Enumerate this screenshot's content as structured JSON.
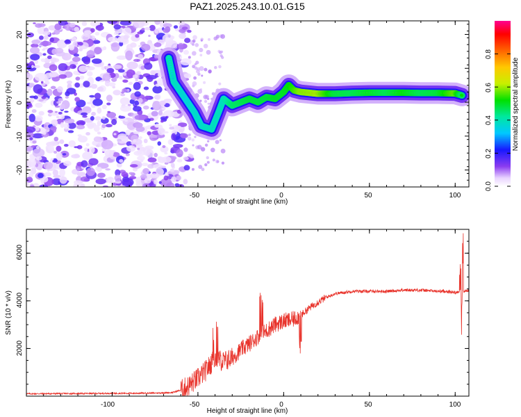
{
  "chart_data": [
    {
      "type": "heatmap",
      "title": "PAZ1.2025.243.10.01.G15",
      "xlabel": "Height of straight line (km)",
      "ylabel": "Frequency (Hz)",
      "xlim": [
        -150,
        108
      ],
      "ylim": [
        -25,
        24
      ],
      "xticks": [
        -100,
        -50,
        0,
        50,
        100
      ],
      "xtick_labels": [
        "-100",
        "-50",
        "0",
        "50",
        "100"
      ],
      "yticks": [
        -20,
        -10,
        0,
        10,
        20
      ],
      "ytick_labels": [
        "-20",
        "-10",
        "0",
        "10",
        "20"
      ],
      "colorbar": {
        "label": "Normalized spectral amplitude",
        "range": [
          0,
          1
        ],
        "ticks": [
          0.0,
          0.2,
          0.4,
          0.6,
          0.8
        ],
        "tick_labels": [
          "0.0",
          "0.2",
          "0.4",
          "0.6",
          "0.8"
        ]
      },
      "frequency_track": [
        {
          "x": -67,
          "y": 13,
          "a": 0.35
        },
        {
          "x": -64,
          "y": 6,
          "a": 0.3
        },
        {
          "x": -60,
          "y": 3,
          "a": 0.25
        },
        {
          "x": -56,
          "y": 0,
          "a": 0.2
        },
        {
          "x": -52,
          "y": -3,
          "a": 0.25
        },
        {
          "x": -48,
          "y": -7,
          "a": 0.25
        },
        {
          "x": -42,
          "y": -8,
          "a": 0.3
        },
        {
          "x": -38,
          "y": -3,
          "a": 0.3
        },
        {
          "x": -35,
          "y": 1,
          "a": 0.3
        },
        {
          "x": -30,
          "y": -1,
          "a": 0.5
        },
        {
          "x": -25,
          "y": 0,
          "a": 0.55
        },
        {
          "x": -20,
          "y": 1,
          "a": 0.6
        },
        {
          "x": -15,
          "y": 0,
          "a": 0.6
        },
        {
          "x": -10,
          "y": 1.5,
          "a": 0.6
        },
        {
          "x": -5,
          "y": 1,
          "a": 0.65
        },
        {
          "x": 0,
          "y": 3,
          "a": 0.65
        },
        {
          "x": 3,
          "y": 5,
          "a": 0.7
        },
        {
          "x": 6,
          "y": 3.5,
          "a": 0.8
        },
        {
          "x": 10,
          "y": 3,
          "a": 0.95
        },
        {
          "x": 20,
          "y": 2.5,
          "a": 1.0
        },
        {
          "x": 30,
          "y": 2.5,
          "a": 0.6
        },
        {
          "x": 40,
          "y": 2.7,
          "a": 0.55
        },
        {
          "x": 50,
          "y": 2.8,
          "a": 0.65
        },
        {
          "x": 60,
          "y": 2.8,
          "a": 0.55
        },
        {
          "x": 70,
          "y": 2.8,
          "a": 0.7
        },
        {
          "x": 80,
          "y": 2.7,
          "a": 0.55
        },
        {
          "x": 90,
          "y": 2.7,
          "a": 0.6
        },
        {
          "x": 100,
          "y": 2.6,
          "a": 0.9
        },
        {
          "x": 104,
          "y": 2.0,
          "a": 0.5
        }
      ]
    },
    {
      "type": "line",
      "xlabel": "Height of straight line (km)",
      "ylabel": "SNR (10 * v/v)",
      "xlim": [
        -150,
        108
      ],
      "ylim": [
        0,
        7000
      ],
      "xticks": [
        -100,
        -50,
        0,
        50,
        100
      ],
      "xtick_labels": [
        "-100",
        "-50",
        "0",
        "50",
        "100"
      ],
      "yticks": [
        2000,
        4000,
        6000
      ],
      "ytick_labels": [
        "2000",
        "4000",
        "6000"
      ],
      "series": [
        {
          "name": "SNR",
          "color": "#e8322a",
          "x": [
            -150,
            -120,
            -90,
            -75,
            -65,
            -60,
            -55,
            -50,
            -45,
            -40,
            -35,
            -30,
            -25,
            -20,
            -15,
            -10,
            -5,
            0,
            5,
            10,
            15,
            20,
            25,
            30,
            40,
            50,
            60,
            70,
            80,
            90,
            95,
            100,
            102,
            103,
            104,
            105,
            108
          ],
          "y": [
            100,
            110,
            120,
            130,
            150,
            250,
            450,
            750,
            1100,
            1600,
            1450,
            1600,
            1950,
            2200,
            2500,
            2750,
            3000,
            3150,
            3200,
            3400,
            3700,
            3950,
            4150,
            4300,
            4400,
            4400,
            4400,
            4450,
            4450,
            4400,
            4400,
            4350,
            4400,
            4200,
            4500,
            4400,
            4450
          ]
        }
      ]
    }
  ]
}
